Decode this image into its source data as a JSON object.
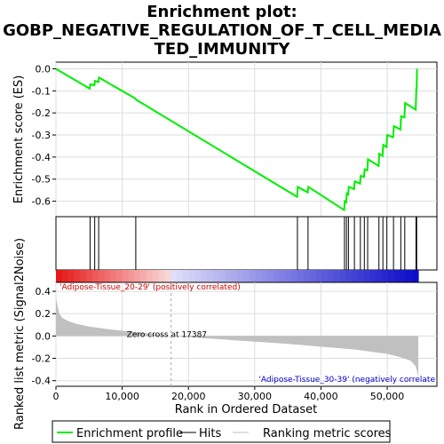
{
  "chart_data": {
    "type": "line",
    "title_lines": [
      "Enrichment plot:",
      "GOBP_NEGATIVE_REGULATION_OF_T_CELL_MEDIA",
      "TED_IMMUNITY"
    ],
    "es_panel": {
      "ylabel": "Enrichment score (ES)",
      "ylim": [
        -0.67,
        0.03
      ],
      "yticks": [
        0.0,
        -0.1,
        -0.2,
        -0.3,
        -0.4,
        -0.5,
        -0.6
      ],
      "ytick_labels": [
        "0.0",
        "-0.1",
        "-0.2",
        "-0.3",
        "-0.4",
        "-0.5",
        "-0.6"
      ],
      "series": [
        {
          "name": "Enrichment profile",
          "color": "#00ee00",
          "x": [
            0,
            5100,
            5200,
            5800,
            5900,
            6400,
            6500,
            12000,
            12100,
            36400,
            36500,
            38000,
            38100,
            43500,
            43600,
            43800,
            43900,
            44100,
            44200,
            45000,
            45100,
            45900,
            46000,
            46500,
            46600,
            47000,
            47100,
            48700,
            48800,
            49300,
            49400,
            49900,
            50000,
            50900,
            51000,
            52000,
            52100,
            52600,
            52700,
            54300,
            54400,
            54450,
            54500
          ],
          "y": [
            0.0,
            -0.09,
            -0.07,
            -0.075,
            -0.055,
            -0.06,
            -0.04,
            -0.135,
            -0.14,
            -0.58,
            -0.535,
            -0.56,
            -0.535,
            -0.64,
            -0.6,
            -0.605,
            -0.565,
            -0.57,
            -0.535,
            -0.545,
            -0.51,
            -0.52,
            -0.485,
            -0.49,
            -0.455,
            -0.46,
            -0.41,
            -0.44,
            -0.385,
            -0.395,
            -0.345,
            -0.355,
            -0.3,
            -0.31,
            -0.26,
            -0.275,
            -0.215,
            -0.22,
            -0.155,
            -0.185,
            -0.09,
            -0.09,
            0.0
          ]
        }
      ]
    },
    "hits": {
      "name": "Hits",
      "positions": [
        5150,
        5850,
        6450,
        12050,
        36450,
        38050,
        43550,
        43850,
        44150,
        45050,
        45950,
        46550,
        47050,
        48750,
        49350,
        49950,
        50950,
        52050,
        52650,
        54350,
        54450
      ]
    },
    "ranked_metric": {
      "name": "Ranking metric scores",
      "ylabel": "Ranked list metric (Signal2Noise)",
      "ylim": [
        -0.45,
        0.48
      ],
      "yticks": [
        0.4,
        0.2,
        0.0,
        -0.2,
        -0.4
      ],
      "ytick_labels": [
        "0.4",
        "0.2",
        "0.0",
        "-0.2",
        "-0.4"
      ],
      "x": [
        0,
        500,
        1000,
        2000,
        3000,
        5000,
        8000,
        12000,
        17387,
        25000,
        35000,
        45000,
        50000,
        52000,
        53500,
        54300,
        54700
      ],
      "y": [
        0.34,
        0.2,
        0.16,
        0.13,
        0.11,
        0.085,
        0.06,
        0.035,
        0.0,
        -0.03,
        -0.07,
        -0.12,
        -0.16,
        -0.19,
        -0.22,
        -0.27,
        -0.36
      ],
      "zero_cross_label": "Zero cross at 17387",
      "zero_cross_x": 17387,
      "positive_label": "'Adipose-Tissue_20-29' (positively correlated)",
      "negative_label": "'Adipose-Tissue_30-39' (negatively correlate",
      "positive_color": "#cc0000",
      "negative_color": "#0000cc"
    },
    "xaxis": {
      "xlabel": "Rank in Ordered Dataset",
      "xlim": [
        0,
        57500
      ],
      "xticks": [
        0,
        10000,
        20000,
        30000,
        40000,
        50000
      ],
      "xtick_labels": [
        "0",
        "10,000",
        "20,000",
        "30,000",
        "40,000",
        "50,000"
      ]
    },
    "legend": {
      "items": [
        {
          "label": "Enrichment profile",
          "color": "#00ee00"
        },
        {
          "label": "Hits",
          "color": "#000000"
        },
        {
          "label": "Ranking metric scores",
          "color": "#c0c0c0"
        }
      ]
    },
    "grid": true
  }
}
